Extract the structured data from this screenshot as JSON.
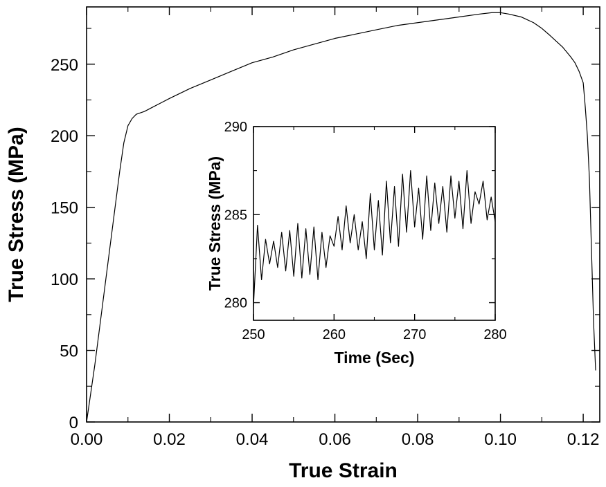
{
  "chart_data": [
    {
      "type": "line",
      "title": "",
      "xlabel": "True Strain",
      "ylabel": "True Stress (MPa)",
      "xlim": [
        0.0,
        0.124
      ],
      "ylim": [
        0,
        290
      ],
      "xticks": [
        "0.00",
        "0.02",
        "0.04",
        "0.06",
        "0.08",
        "0.10",
        "0.12"
      ],
      "yticks": [
        "0",
        "50",
        "100",
        "150",
        "200",
        "250"
      ],
      "grid": false,
      "legend": "none",
      "series": [
        {
          "x": [
            0.0,
            0.002,
            0.004,
            0.006,
            0.008,
            0.009,
            0.01,
            0.011,
            0.012,
            0.014,
            0.016,
            0.018,
            0.02,
            0.025,
            0.03,
            0.035,
            0.04,
            0.045,
            0.05,
            0.055,
            0.06,
            0.065,
            0.07,
            0.075,
            0.08,
            0.085,
            0.09,
            0.095,
            0.098,
            0.1,
            0.102,
            0.105,
            0.108,
            0.11,
            0.112,
            0.115,
            0.117,
            0.118,
            0.119,
            0.12,
            0.1205,
            0.121,
            0.1215,
            0.122,
            0.1225,
            0.123
          ],
          "y": [
            0,
            40,
            85,
            130,
            175,
            195,
            207,
            212,
            215,
            217,
            220,
            223,
            226,
            233,
            239,
            245,
            251,
            255,
            260,
            264,
            268,
            271,
            274,
            277,
            279,
            281,
            283,
            285,
            286,
            286,
            285,
            283,
            279,
            275,
            270,
            262,
            255,
            251,
            245,
            237,
            220,
            200,
            170,
            120,
            70,
            36
          ]
        }
      ]
    },
    {
      "type": "line",
      "title": "",
      "xlabel": "Time (Sec)",
      "ylabel": "True Stress (MPa)",
      "xlim": [
        250,
        280
      ],
      "ylim": [
        279,
        290
      ],
      "xticks": [
        "250",
        "260",
        "270",
        "280"
      ],
      "yticks": [
        "280",
        "285",
        "290"
      ],
      "grid": false,
      "legend": "none",
      "series": [
        {
          "x": [
            250.0,
            250.5,
            251.0,
            251.5,
            252.0,
            252.5,
            253.0,
            253.5,
            254.0,
            254.5,
            255.0,
            255.5,
            256.0,
            256.5,
            257.0,
            257.5,
            258.0,
            258.5,
            259.0,
            259.5,
            260.0,
            260.5,
            261.0,
            261.5,
            262.0,
            262.5,
            263.0,
            263.5,
            264.0,
            264.5,
            265.0,
            265.5,
            266.0,
            266.5,
            267.0,
            267.5,
            268.0,
            268.5,
            269.0,
            269.5,
            270.0,
            270.5,
            271.0,
            271.5,
            272.0,
            272.5,
            273.0,
            273.5,
            274.0,
            274.5,
            275.0,
            275.5,
            276.0,
            276.5,
            277.0,
            277.5,
            278.0,
            278.5,
            279.0,
            279.5,
            280.0
          ],
          "y": [
            279.8,
            284.4,
            281.3,
            283.6,
            282.2,
            283.5,
            282.0,
            284.0,
            281.8,
            284.1,
            281.5,
            284.5,
            281.4,
            284.2,
            281.6,
            284.3,
            281.3,
            284.0,
            282.0,
            283.8,
            283.2,
            284.9,
            283.0,
            285.5,
            283.4,
            285.0,
            283.0,
            284.6,
            282.5,
            286.2,
            283.0,
            285.8,
            282.7,
            286.9,
            283.4,
            286.6,
            283.2,
            287.3,
            284.0,
            287.5,
            284.3,
            286.5,
            283.6,
            287.2,
            284.1,
            286.8,
            284.5,
            286.6,
            284.0,
            287.2,
            284.8,
            286.9,
            284.2,
            287.5,
            284.5,
            286.3,
            285.6,
            286.9,
            284.7,
            286.0,
            284.6
          ]
        }
      ]
    }
  ]
}
